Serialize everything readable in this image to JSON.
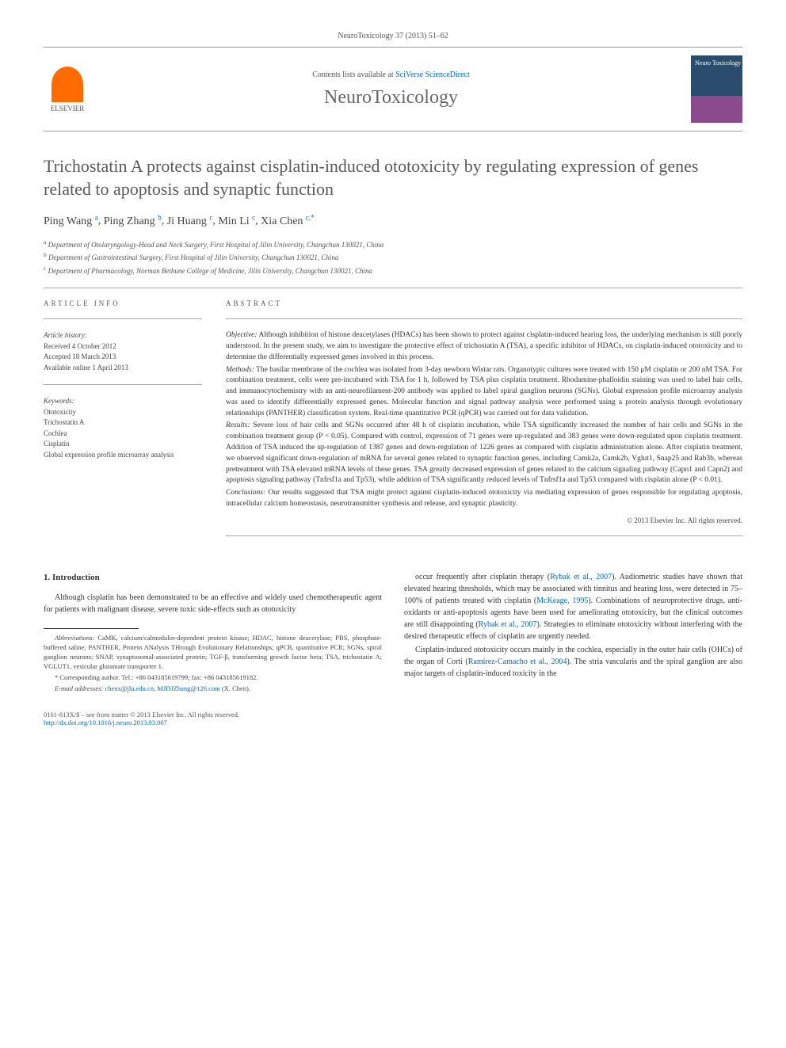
{
  "journal_ref": "NeuroToxicology 37 (2013) 51–62",
  "header": {
    "contents_prefix": "Contents lists available at ",
    "contents_link": "SciVerse ScienceDirect",
    "journal_name": "NeuroToxicology",
    "elsevier": "ELSEVIER",
    "cover_label": "Neuro\nToxicology"
  },
  "title": "Trichostatin A protects against cisplatin-induced ototoxicity by regulating expression of genes related to apoptosis and synaptic function",
  "authors": [
    {
      "name": "Ping Wang",
      "sup": "a"
    },
    {
      "name": "Ping Zhang",
      "sup": "b"
    },
    {
      "name": "Ji Huang",
      "sup": "c"
    },
    {
      "name": "Min Li",
      "sup": "c"
    },
    {
      "name": "Xia Chen",
      "sup": "c,*"
    }
  ],
  "affiliations": [
    {
      "sup": "a",
      "text": "Department of Otolaryngology-Head and Neck Surgery, First Hospital of Jilin University, Changchun 130021, China"
    },
    {
      "sup": "b",
      "text": "Department of Gastrointestinal Surgery, First Hospital of Jilin University, Changchun 130021, China"
    },
    {
      "sup": "c",
      "text": "Department of Pharmacology, Norman Bethune College of Medicine, Jilin University, Changchun 130021, China"
    }
  ],
  "article_info": {
    "heading": "ARTICLE INFO",
    "history_title": "Article history:",
    "history": [
      "Received 4 October 2012",
      "Accepted 18 March 2013",
      "Available online 1 April 2013"
    ],
    "keywords_title": "Keywords:",
    "keywords": [
      "Ototoxicity",
      "Trichostatin A",
      "Cochlea",
      "Cisplatin",
      "Global expression profile microarray analysis"
    ]
  },
  "abstract": {
    "heading": "ABSTRACT",
    "objective_label": "Objective:",
    "objective": " Although inhibition of histone deacetylases (HDACs) has been shown to protect against cisplatin-induced hearing loss, the underlying mechanism is still poorly understood. In the present study, we aim to investigate the protective effect of trichostatin A (TSA), a specific inhibitor of HDACs, on cisplatin-induced ototoxicity and to determine the differentially expressed genes involved in this process.",
    "methods_label": "Methods:",
    "methods": " The basilar membrane of the cochlea was isolated from 3-day newborn Wistar rats. Organotypic cultures were treated with 150 μM cisplatin or 200 nM TSA. For combination treatment, cells were pre-incubated with TSA for 1 h, followed by TSA plus cisplatin treatment. Rhodamine-phalloidin staining was used to label hair cells, and immunocytochemistry with an anti-neurofilament-200 antibody was applied to label spiral ganglion neurons (SGNs). Global expression profile microarray analysis was used to identify differentially expressed genes. Molecular function and signal pathway analysis were performed using a protein analysis through evolutionary relationships (PANTHER) classification system. Real-time quantitative PCR (qPCR) was carried out for data validation.",
    "results_label": "Results:",
    "results": " Severe loss of hair cells and SGNs occurred after 48 h of cisplatin incubation, while TSA significantly increased the number of hair cells and SGNs in the combination treatment group (P < 0.05). Compared with control, expression of 71 genes were up-regulated and 383 genes were down-regulated upon cisplatin treatment. Addition of TSA induced the up-regulation of 1387 genes and down-regulation of 1226 genes as compared with cisplatin administration alone. After cisplatin treatment, we observed significant down-regulation of mRNA for several genes related to synaptic function genes, including Camk2a, Camk2b, Vglut1, Snap25 and Rab3b, whereas pretreatment with TSA elevated mRNA levels of these genes. TSA greatly decreased expression of genes related to the calcium signaling pathway (Capn1 and Capn2) and apoptosis signaling pathway (Tnfrsf1a and Tp53), while addition of TSA significantly reduced levels of Tnfrsf1a and Tp53 compared with cisplatin alone (P < 0.01).",
    "conclusions_label": "Conclusions:",
    "conclusions": " Our results suggested that TSA might protect against cisplatin-induced ototoxicity via mediating expression of genes responsible for regulating apoptosis, intracellular calcium homeostasis, neurotransmitter synthesis and release, and synaptic plasticity.",
    "copyright": "© 2013 Elsevier Inc. All rights reserved."
  },
  "body": {
    "intro_heading": "1. Introduction",
    "col1_p1": "Although cisplatin has been demonstrated to be an effective and widely used chemotherapeutic agent for patients with malignant disease, severe toxic side-effects such as ototoxicity",
    "col2_p1_a": "occur frequently after cisplatin therapy (",
    "col2_p1_cite1": "Rybak et al., 2007",
    "col2_p1_b": "). Audiometric studies have shown that elevated hearing thresholds, which may be associated with tinnitus and hearing loss, were detected in 75–100% of patients treated with cisplatin (",
    "col2_p1_cite2": "McKeage, 1995",
    "col2_p1_c": "). Combinations of neuroprotective drugs, anti-oxidants or anti-apoptosis agents have been used for ameliorating ototoxicity, but the clinical outcomes are still disappointing (",
    "col2_p1_cite3": "Rybak et al., 2007",
    "col2_p1_d": "). Strategies to eliminate ototoxicity without interfering with the desired therapeutic effects of cisplatin are urgently needed.",
    "col2_p2_a": "Cisplatin-induced ototoxicity occurs mainly in the cochlea, especially in the outer hair cells (OHCs) of the organ of Corti (",
    "col2_p2_cite1": "Ramírez-Camacho et al., 2004",
    "col2_p2_b": "). The stria vascularis and the spiral ganglion are also major targets of cisplatin-induced toxicity in the"
  },
  "footnotes": {
    "abbrev_label": "Abbreviations:",
    "abbrev": " CaMK, calcium/calmodulin-dependent protein kinase; HDAC, histone deacetylase; PBS, phosphate-buffered saline; PANTHER, Protein ANalysis THrough Evolutionary Relationships; qPCR, quantitative PCR; SGNs, spiral ganglion neurons; SNAP, synaptosomal-associated protein; TGF-β, transforming growth factor beta; TSA, trichostatin A; VGLUT1, vesicular glutamate transporter 1.",
    "corr": "* Corresponding author. Tel.: +86 043185619799; fax: +86 043185619182.",
    "email_label": "E-mail addresses:",
    "email1": "chenx@jlu.edu.cn",
    "email_sep": ", ",
    "email2": "MJDJZhang@126.com",
    "email_suffix": " (X. Chen)."
  },
  "footer": {
    "issn": "0161-813X/$ – see front matter © 2013 Elsevier Inc. All rights reserved.",
    "doi": "http://dx.doi.org/10.1016/j.neuro.2013.03.007"
  }
}
